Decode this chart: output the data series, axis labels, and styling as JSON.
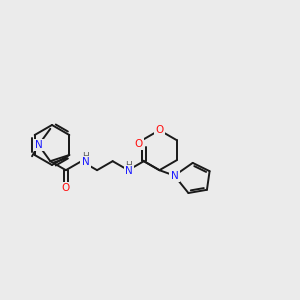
{
  "bg_color": "#ebebeb",
  "bond_color": "#1a1a1a",
  "N_color": "#1919ff",
  "O_color": "#ff0d0d",
  "H_color": "#5a5a5a",
  "line_width": 1.4,
  "figsize": [
    3.0,
    3.0
  ],
  "dpi": 100,
  "xlim": [
    0,
    300
  ],
  "ylim": [
    0,
    300
  ]
}
